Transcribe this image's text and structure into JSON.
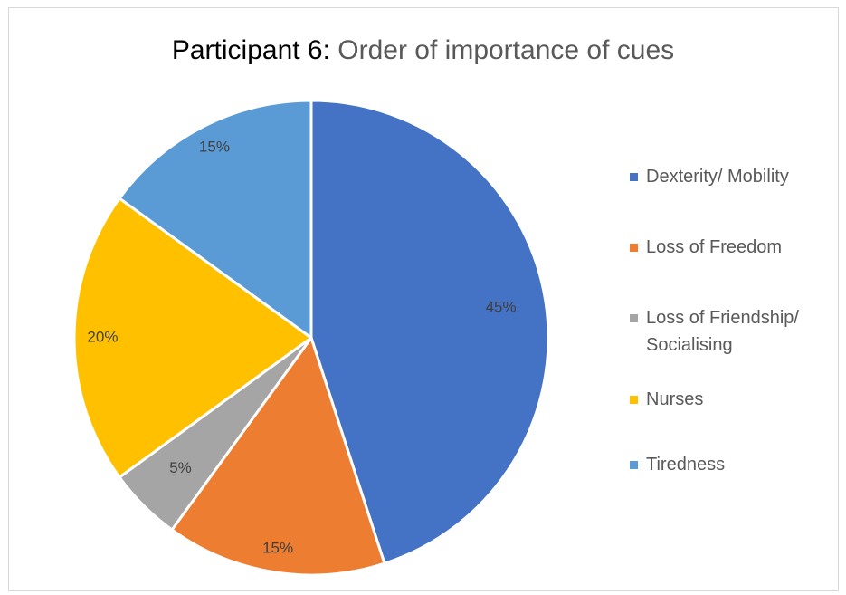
{
  "chart_data": {
    "type": "pie",
    "title_part1": "Participant 6:",
    "title_part2": " Order of importance of cues",
    "categories": [
      "Dexterity/ Mobility",
      "Loss of Freedom",
      "Loss of Friendship/ Socialising",
      "Nurses",
      "Tiredness"
    ],
    "values": [
      45,
      15,
      5,
      20,
      15
    ],
    "data_labels": [
      "45%",
      "15%",
      "5%",
      "20%",
      "15%"
    ],
    "colors": [
      "#4472c4",
      "#ed7d31",
      "#a5a5a5",
      "#ffc000",
      "#5b9bd5"
    ],
    "legend_position": "right",
    "legend_lines": [
      [
        "Dexterity/ Mobility"
      ],
      [
        "Loss of Freedom"
      ],
      [
        "Loss of Friendship/",
        "Socialising"
      ],
      [
        "Nurses"
      ],
      [
        "Tiredness"
      ]
    ]
  }
}
